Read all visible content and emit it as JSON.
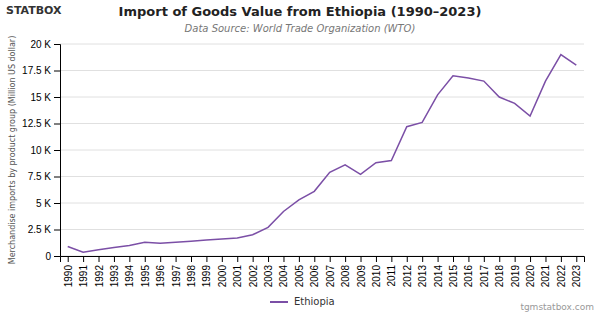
{
  "chart_data": {
    "type": "line",
    "title": "Import of Goods Value from Ethiopia (1990–2023)",
    "subtitle": "Data Source: World Trade Organization (WTO)",
    "ylabel": "Merchandise imports by product group (Million US dollar)",
    "annotations": [
      "STATBOX",
      "tgmstatbox.com"
    ],
    "x": [
      1990,
      1991,
      1992,
      1993,
      1994,
      1995,
      1996,
      1997,
      1998,
      1999,
      2000,
      2001,
      2002,
      2003,
      2004,
      2005,
      2006,
      2007,
      2008,
      2009,
      2010,
      2011,
      2012,
      2013,
      2014,
      2015,
      2016,
      2017,
      2018,
      2019,
      2020,
      2021,
      2022,
      2023
    ],
    "series": [
      {
        "name": "Ethiopia",
        "color": "#7b4fa6",
        "values": [
          900,
          350,
          600,
          800,
          1000,
          1300,
          1200,
          1300,
          1400,
          1500,
          1600,
          1700,
          2000,
          2700,
          4200,
          5300,
          6100,
          7900,
          8600,
          7700,
          8800,
          9000,
          12200,
          12600,
          15200,
          17000,
          16800,
          16500,
          15000,
          14400,
          13200,
          16500,
          19000,
          18000
        ]
      }
    ],
    "xlim": [
      1989.5,
      2023.5
    ],
    "xticks": [
      1990,
      1991,
      1992,
      1993,
      1994,
      1995,
      1996,
      1997,
      1998,
      1999,
      2000,
      2001,
      2002,
      2003,
      2004,
      2005,
      2006,
      2007,
      2008,
      2009,
      2010,
      2011,
      2012,
      2013,
      2014,
      2015,
      2016,
      2017,
      2018,
      2019,
      2020,
      2021,
      2022,
      2023
    ],
    "ylim": [
      0,
      20000
    ],
    "yticks": [
      0,
      {
        "value": 2500,
        "label": "2.5 K"
      },
      {
        "value": 5000,
        "label": "5 K"
      },
      {
        "value": 7500,
        "label": "7.5 K"
      },
      {
        "value": 10000,
        "label": "10 K"
      },
      {
        "value": 12500,
        "label": "12.5 K"
      },
      {
        "value": 15000,
        "label": "15 K"
      },
      {
        "value": 17500,
        "label": "17.5 K"
      },
      {
        "value": 20000,
        "label": "20 K"
      }
    ],
    "grid": true,
    "legend": "bottom"
  }
}
